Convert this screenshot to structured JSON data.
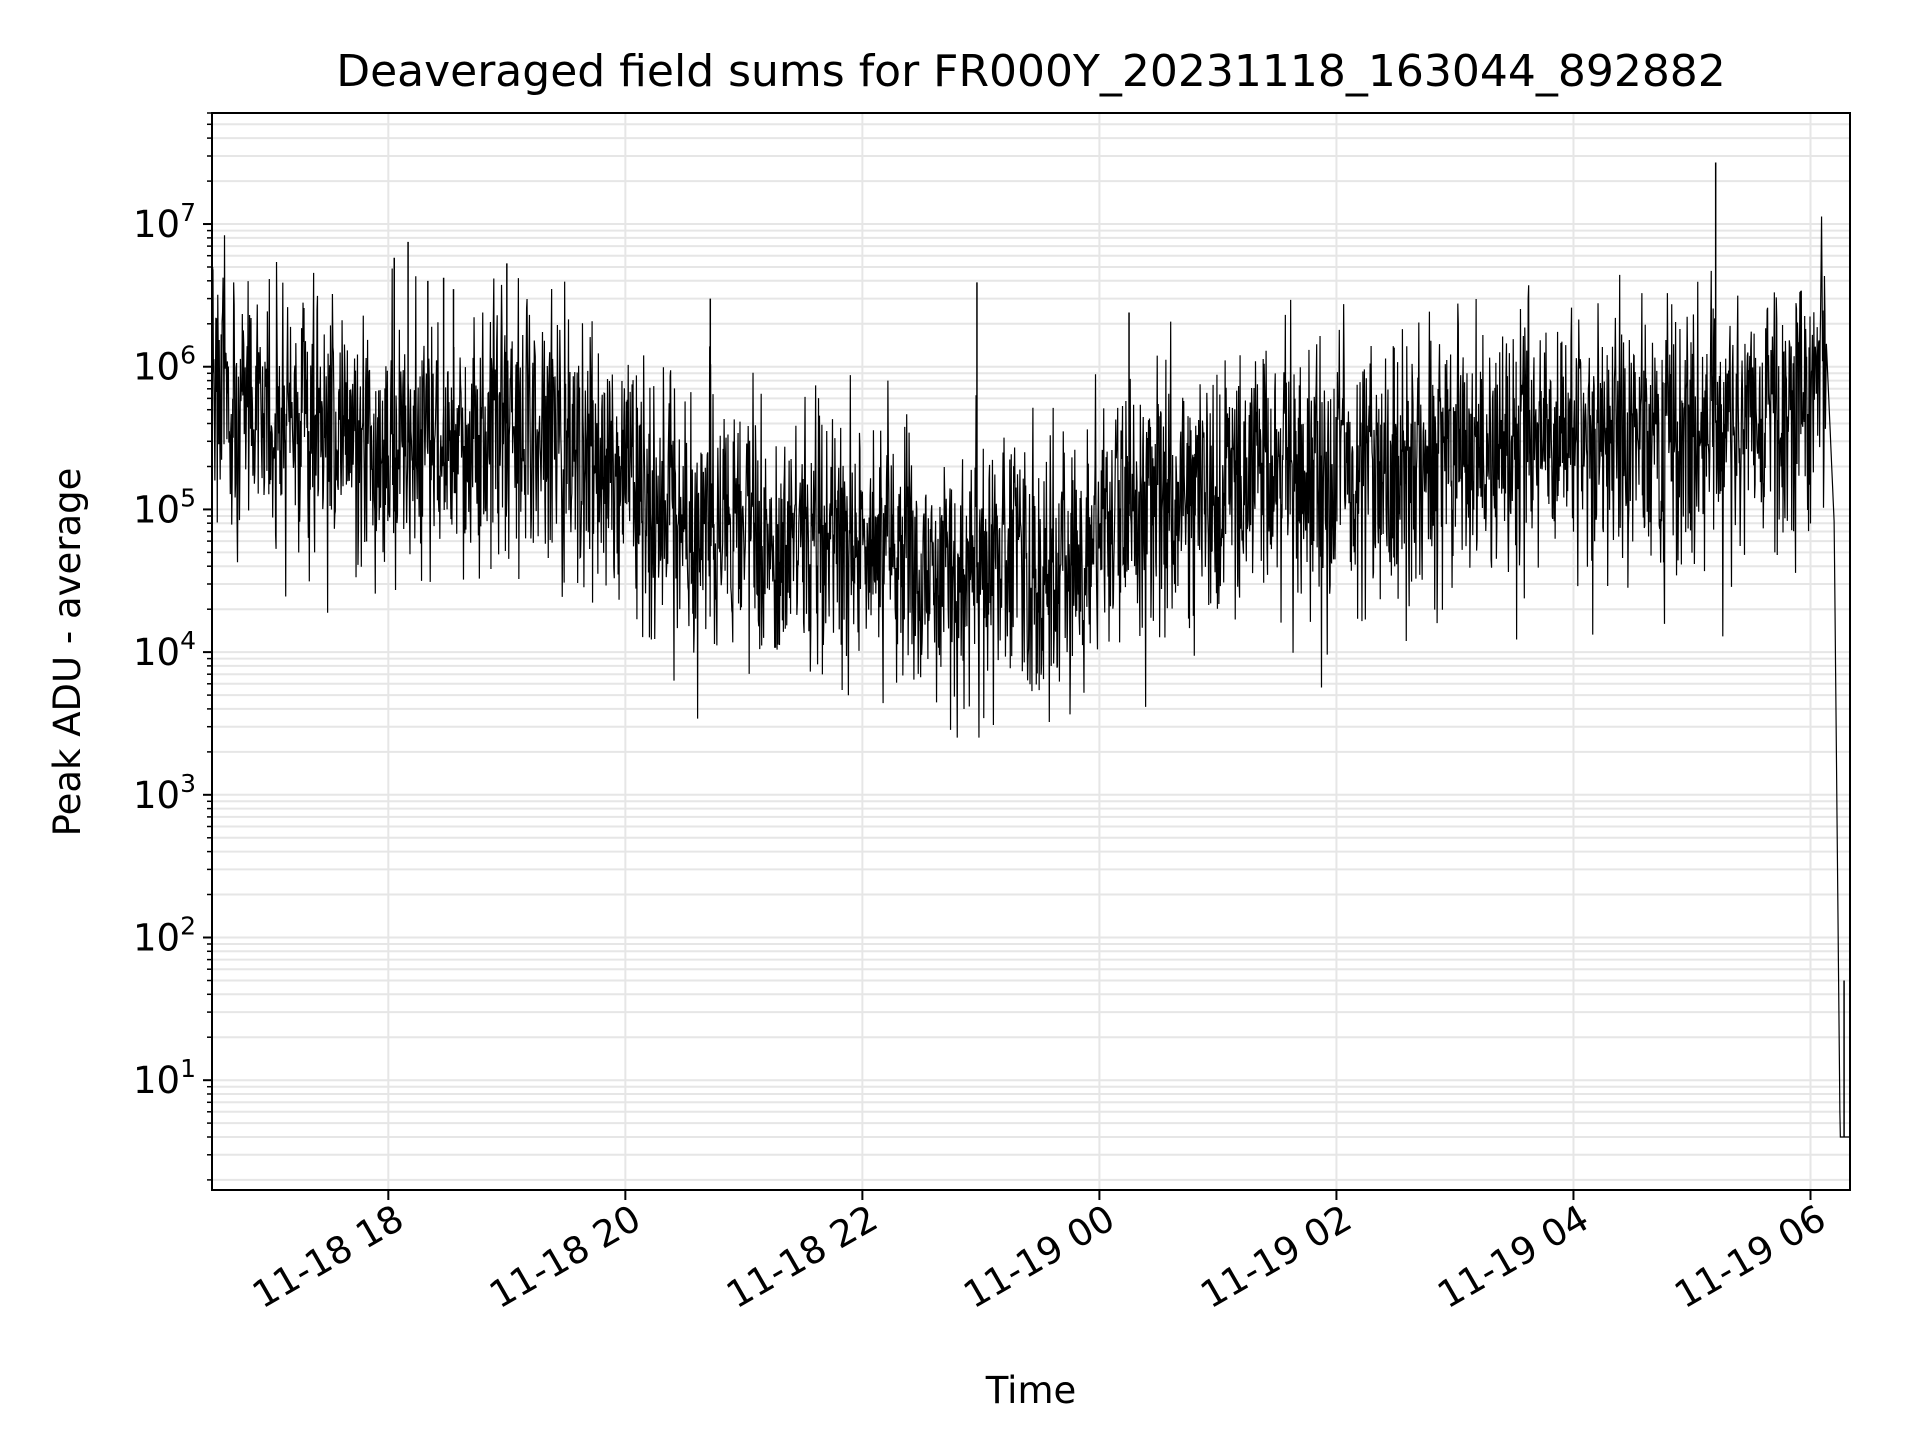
{
  "chart_data": {
    "type": "line",
    "title": "Deaveraged field sums for FR000Y_20231118_163044_892882",
    "xlabel": "Time",
    "ylabel": "Peak ADU - average",
    "y_scale": "log",
    "ylim": [
      1.7,
      60000000
    ],
    "xlim": [
      "2023-11-18 16:30:44",
      "2023-11-19 06:20:00"
    ],
    "grid": true,
    "line_color": "#000000",
    "grid_color": "#e6e6e6",
    "x_ticks": [
      {
        "value": "2023-11-18 18:00",
        "label": "11-18 18"
      },
      {
        "value": "2023-11-18 20:00",
        "label": "11-18 20"
      },
      {
        "value": "2023-11-18 22:00",
        "label": "11-18 22"
      },
      {
        "value": "2023-11-19 00:00",
        "label": "11-19 00"
      },
      {
        "value": "2023-11-19 02:00",
        "label": "11-19 02"
      },
      {
        "value": "2023-11-19 04:00",
        "label": "11-19 04"
      },
      {
        "value": "2023-11-19 06:00",
        "label": "11-19 06"
      }
    ],
    "y_ticks": [
      {
        "value": 10,
        "base": "10",
        "exp": "1"
      },
      {
        "value": 100,
        "base": "10",
        "exp": "2"
      },
      {
        "value": 1000,
        "base": "10",
        "exp": "3"
      },
      {
        "value": 10000,
        "base": "10",
        "exp": "4"
      },
      {
        "value": 100000,
        "base": "10",
        "exp": "5"
      },
      {
        "value": 1000000,
        "base": "10",
        "exp": "6"
      },
      {
        "value": 10000000,
        "base": "10",
        "exp": "7"
      }
    ],
    "series": [
      {
        "x": [
          "2023-11-18 16:31",
          "2023-11-18 16:45",
          "2023-11-18 17:00",
          "2023-11-18 17:15",
          "2023-11-18 17:30",
          "2023-11-18 17:45",
          "2023-11-18 18:00",
          "2023-11-18 18:15",
          "2023-11-18 18:30",
          "2023-11-18 18:45",
          "2023-11-18 19:00",
          "2023-11-18 19:15",
          "2023-11-18 19:30",
          "2023-11-18 19:45",
          "2023-11-18 20:00",
          "2023-11-18 20:15",
          "2023-11-18 20:30",
          "2023-11-18 20:45",
          "2023-11-18 21:00",
          "2023-11-18 21:15",
          "2023-11-18 21:30",
          "2023-11-18 21:45",
          "2023-11-18 22:00",
          "2023-11-18 22:15",
          "2023-11-18 22:30",
          "2023-11-18 22:45",
          "2023-11-18 23:00",
          "2023-11-18 23:15",
          "2023-11-18 23:30",
          "2023-11-18 23:45",
          "2023-11-19 00:00",
          "2023-11-19 00:15",
          "2023-11-19 00:30",
          "2023-11-19 00:45",
          "2023-11-19 01:00",
          "2023-11-19 01:15",
          "2023-11-19 01:30",
          "2023-11-19 01:45",
          "2023-11-19 02:00",
          "2023-11-19 02:15",
          "2023-11-19 02:30",
          "2023-11-19 02:45",
          "2023-11-19 03:00",
          "2023-11-19 03:15",
          "2023-11-19 03:30",
          "2023-11-19 03:45",
          "2023-11-19 04:00",
          "2023-11-19 04:15",
          "2023-11-19 04:30",
          "2023-11-19 04:45",
          "2023-11-19 05:00",
          "2023-11-19 05:15",
          "2023-11-19 05:30",
          "2023-11-19 05:45",
          "2023-11-19 06:00",
          "2023-11-19 06:08",
          "2023-11-19 06:12",
          "2023-11-19 06:15",
          "2023-11-19 06:20"
        ],
        "y": [
          900000,
          500000,
          350000,
          400000,
          300000,
          300000,
          250000,
          320000,
          300000,
          350000,
          400000,
          350000,
          300000,
          250000,
          200000,
          120000,
          80000,
          100000,
          80000,
          60000,
          70000,
          60000,
          55000,
          50000,
          40000,
          35000,
          40000,
          50000,
          35000,
          40000,
          80000,
          90000,
          100000,
          110000,
          150000,
          180000,
          200000,
          200000,
          180000,
          200000,
          220000,
          220000,
          230000,
          250000,
          260000,
          270000,
          280000,
          300000,
          300000,
          320000,
          500000,
          550000,
          450000,
          500000,
          700000,
          1500000,
          80000,
          4,
          4
        ]
      }
    ],
    "peaks": [
      {
        "x": "2023-11-18 16:31",
        "y": 5000000
      },
      {
        "x": "2023-11-18 18:03",
        "y": 5800000
      },
      {
        "x": "2023-11-18 18:10",
        "y": 7500000
      },
      {
        "x": "2023-11-18 18:20",
        "y": 4000000
      },
      {
        "x": "2023-11-18 18:28",
        "y": 4200000
      },
      {
        "x": "2023-11-18 18:33",
        "y": 3500000
      },
      {
        "x": "2023-11-18 19:00",
        "y": 5300000
      },
      {
        "x": "2023-11-18 20:43",
        "y": 3000000
      },
      {
        "x": "2023-11-18 22:58",
        "y": 3900000
      },
      {
        "x": "2023-11-19 00:15",
        "y": 2400000
      },
      {
        "x": "2023-11-19 05:12",
        "y": 27000000
      },
      {
        "x": "2023-11-19 06:17",
        "y": 50
      }
    ]
  }
}
